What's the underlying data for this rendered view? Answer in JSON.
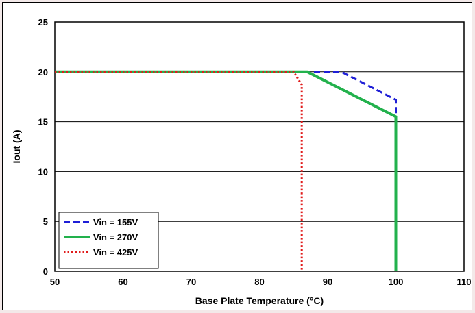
{
  "chart_data": {
    "type": "line",
    "title": "",
    "xlabel": "Base Plate Temperature (°C)",
    "ylabel": "Iout (A)",
    "xlim": [
      50,
      110
    ],
    "ylim": [
      0,
      25
    ],
    "xticks": [
      50,
      60,
      70,
      80,
      90,
      100,
      110
    ],
    "yticks": [
      0,
      5,
      10,
      15,
      20,
      25
    ],
    "grid": "horizontal",
    "legend": "bottom-left",
    "series": [
      {
        "name": "Vin = 155V",
        "color": "#1f1fd6",
        "style": "dashed",
        "points": [
          [
            50,
            20
          ],
          [
            92,
            20
          ],
          [
            100,
            17.2
          ],
          [
            100,
            0
          ]
        ]
      },
      {
        "name": "Vin = 270V",
        "color": "#22b14c",
        "style": "solid",
        "points": [
          [
            50,
            20
          ],
          [
            87,
            20
          ],
          [
            100,
            15.5
          ],
          [
            100,
            0
          ]
        ]
      },
      {
        "name": "Vin = 425V",
        "color": "#e01b1b",
        "style": "dotted",
        "points": [
          [
            50,
            20
          ],
          [
            85,
            20
          ],
          [
            86.2,
            18.7
          ],
          [
            86.2,
            0
          ]
        ]
      }
    ]
  }
}
